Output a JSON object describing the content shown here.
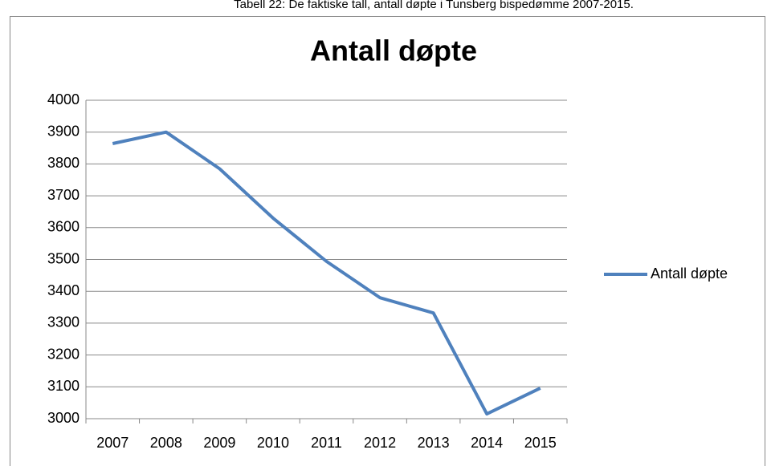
{
  "caption": "Tabell 22: De faktiske tall, antall døpte i Tunsberg bispedømme 2007-2015.",
  "chart_data": {
    "type": "line",
    "title": "Antall døpte",
    "categories": [
      "2007",
      "2008",
      "2009",
      "2010",
      "2011",
      "2012",
      "2013",
      "2014",
      "2015"
    ],
    "series": [
      {
        "name": "Antall døpte",
        "color": "#4f81bd",
        "values": [
          3864,
          3900,
          3785,
          3630,
          3494,
          3380,
          3332,
          3015,
          3096
        ]
      }
    ],
    "ylim": [
      3000,
      4000
    ],
    "yticks": [
      3000,
      3100,
      3200,
      3300,
      3400,
      3500,
      3600,
      3700,
      3800,
      3900,
      4000
    ],
    "grid": true,
    "legend": "right"
  }
}
